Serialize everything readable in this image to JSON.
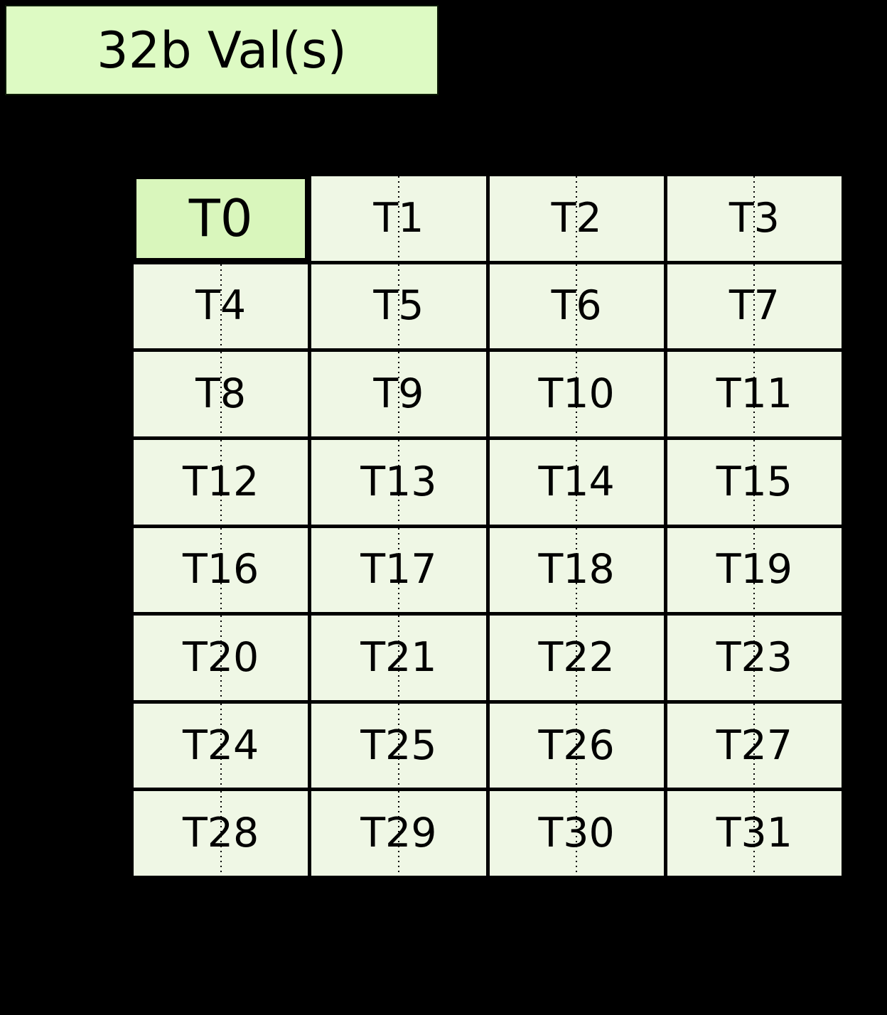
{
  "title_box": {
    "label": "32b Val(s)"
  },
  "grid": {
    "rows": 8,
    "columns": 4,
    "highlighted_cell": "T0",
    "cells": [
      {
        "label": "T0",
        "highlight": true
      },
      {
        "label": "T1"
      },
      {
        "label": "T2"
      },
      {
        "label": "T3"
      },
      {
        "label": "T4"
      },
      {
        "label": "T5"
      },
      {
        "label": "T6"
      },
      {
        "label": "T7"
      },
      {
        "label": "T8"
      },
      {
        "label": "T9"
      },
      {
        "label": "T10"
      },
      {
        "label": "T11"
      },
      {
        "label": "T12"
      },
      {
        "label": "T13"
      },
      {
        "label": "T14"
      },
      {
        "label": "T15"
      },
      {
        "label": "T16"
      },
      {
        "label": "T17"
      },
      {
        "label": "T18"
      },
      {
        "label": "T19"
      },
      {
        "label": "T20"
      },
      {
        "label": "T21"
      },
      {
        "label": "T22"
      },
      {
        "label": "T23"
      },
      {
        "label": "T24"
      },
      {
        "label": "T25"
      },
      {
        "label": "T26"
      },
      {
        "label": "T27"
      },
      {
        "label": "T28"
      },
      {
        "label": "T29"
      },
      {
        "label": "T30"
      },
      {
        "label": "T31"
      }
    ]
  },
  "colors": {
    "background": "#000000",
    "title_box_fill": "#ddfac3",
    "highlight_cell_fill": "#d9f6bc",
    "cell_fill": "#eff7e5",
    "grid_line": "#000000",
    "text": "#000000"
  }
}
